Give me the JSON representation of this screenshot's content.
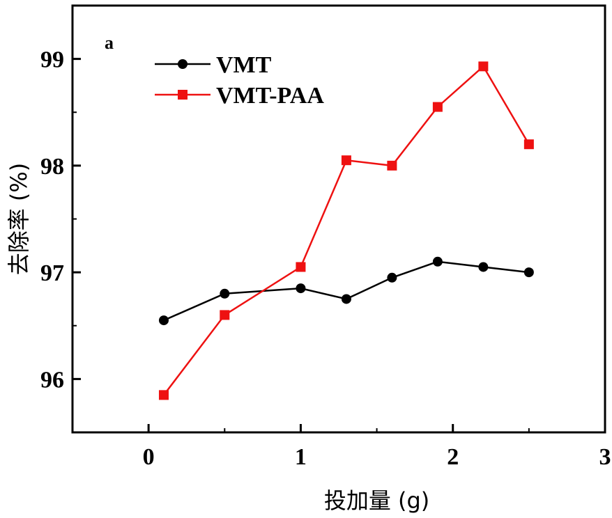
{
  "chart_data": {
    "type": "line",
    "title": "",
    "panel_label": "a",
    "xlabel": "投加量 (g)",
    "ylabel": "去除率 (%)",
    "xlim": [
      -0.5,
      3.0
    ],
    "ylim": [
      95.5,
      99.5
    ],
    "xticks": [
      0,
      1,
      2,
      3
    ],
    "yticks": [
      96,
      97,
      98,
      99
    ],
    "x": [
      0.1,
      0.5,
      1.0,
      1.3,
      1.6,
      1.9,
      2.2,
      2.5
    ],
    "series": [
      {
        "name": "VMT",
        "color": "#000000",
        "marker": "circle",
        "values": [
          96.55,
          96.8,
          96.85,
          96.75,
          96.95,
          97.1,
          97.05,
          97.0
        ]
      },
      {
        "name": "VMT-PAA",
        "color": "#ee1111",
        "marker": "square",
        "values": [
          95.85,
          96.6,
          97.05,
          98.05,
          98.0,
          98.55,
          98.93,
          98.2
        ]
      }
    ],
    "legend_position": "top-left",
    "grid": false
  }
}
